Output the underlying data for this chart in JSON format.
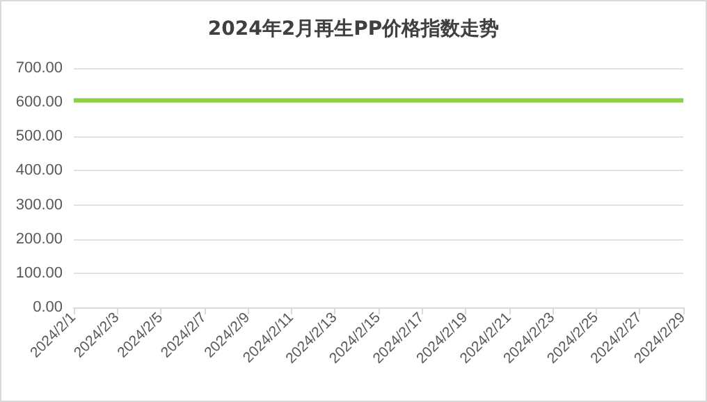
{
  "chart_data": {
    "type": "line",
    "title": "2024年2月再生PP价格指数走势",
    "categories": [
      "2024/2/1",
      null,
      "2024/2/3",
      null,
      "2024/2/5",
      null,
      "2024/2/7",
      null,
      "2024/2/9",
      null,
      "2024/2/11",
      null,
      "2024/2/13",
      null,
      "2024/2/15",
      null,
      "2024/2/17",
      null,
      "2024/2/19",
      null,
      "2024/2/21",
      null,
      "2024/2/23",
      null,
      "2024/2/25",
      null,
      "2024/2/27",
      null,
      "2024/2/29"
    ],
    "series": [
      {
        "color": "#8cd146",
        "values": [
          606,
          606,
          606,
          606,
          606,
          606,
          606,
          606,
          606,
          606,
          606,
          606,
          606,
          606,
          606,
          606,
          606,
          606,
          606,
          606,
          606,
          606,
          606,
          606,
          606,
          606,
          606,
          606,
          606
        ]
      }
    ],
    "ylim": [
      0,
      700
    ],
    "yticks": [
      {
        "value": 0,
        "label": "0.00"
      },
      {
        "value": 100,
        "label": "100.00"
      },
      {
        "value": 200,
        "label": "200.00"
      },
      {
        "value": 300,
        "label": "300.00"
      },
      {
        "value": 400,
        "label": "400.00"
      },
      {
        "value": 500,
        "label": "500.00"
      },
      {
        "value": 600,
        "label": "600.00"
      },
      {
        "value": 700,
        "label": "700.00"
      }
    ],
    "grid": "y",
    "marker": "none",
    "line_style": "solid"
  }
}
